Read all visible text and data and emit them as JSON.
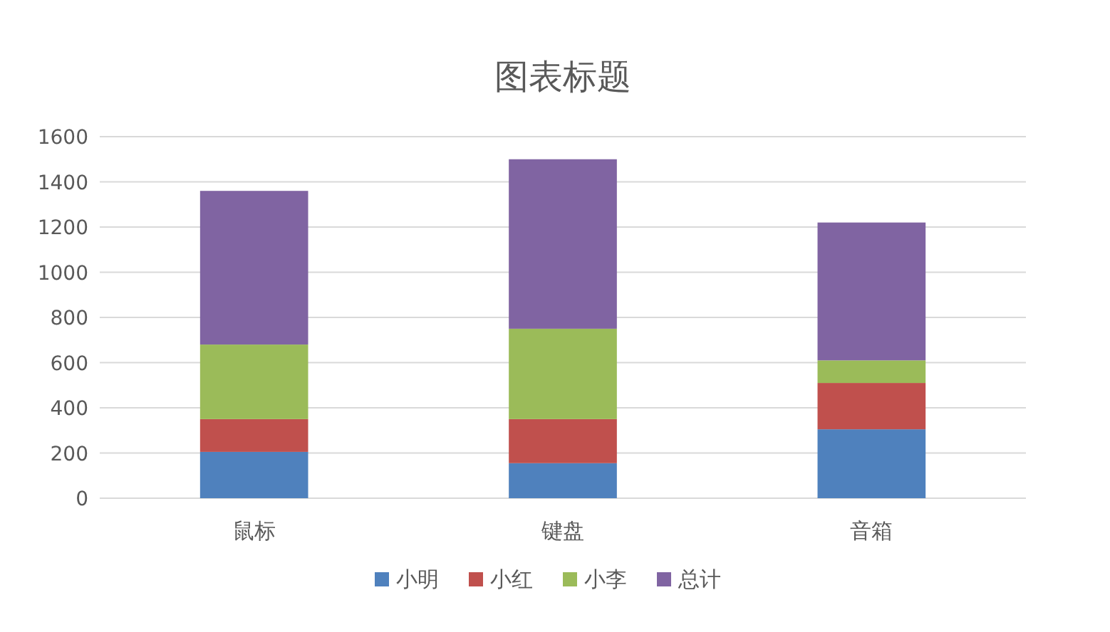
{
  "chart_data": {
    "type": "bar",
    "stacked": true,
    "title": "图表标题",
    "categories": [
      "鼠标",
      "键盘",
      "音箱"
    ],
    "series": [
      {
        "name": "小明",
        "color": "#4f81bd",
        "values": [
          205,
          155,
          305
        ]
      },
      {
        "name": "小红",
        "color": "#c0504d",
        "values": [
          145,
          195,
          205
        ]
      },
      {
        "name": "小李",
        "color": "#9bbb59",
        "values": [
          330,
          400,
          100
        ]
      },
      {
        "name": "总计",
        "color": "#8064a2",
        "values": [
          680,
          750,
          610
        ]
      }
    ],
    "ylim": [
      0,
      1600
    ],
    "yticks": [
      0,
      200,
      400,
      600,
      800,
      1000,
      1200,
      1400,
      1600
    ],
    "grid": "y",
    "legend": "bottom"
  }
}
